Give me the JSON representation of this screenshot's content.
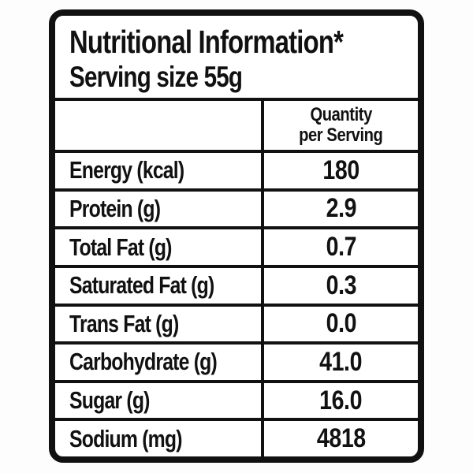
{
  "label": {
    "title": "Nutritional Information*",
    "serving_line": "Serving size 55g",
    "header": {
      "quantity_line1": "Quantity",
      "quantity_line2": "per Serving"
    },
    "rows": [
      {
        "label": "Energy (kcal)",
        "value": "180"
      },
      {
        "label": "Protein (g)",
        "value": "2.9"
      },
      {
        "label": "Total Fat (g)",
        "value": "0.7"
      },
      {
        "label": "Saturated Fat (g)",
        "value": "0.3"
      },
      {
        "label": "Trans Fat (g)",
        "value": "0.0"
      },
      {
        "label": "Carbohydrate (g)",
        "value": "41.0"
      },
      {
        "label": "Sugar (g)",
        "value": "16.0"
      },
      {
        "label": "Sodium (mg)",
        "value": "4818"
      }
    ],
    "colors": {
      "border": "#111111",
      "background": "#ffffff",
      "text": "#111111"
    }
  }
}
